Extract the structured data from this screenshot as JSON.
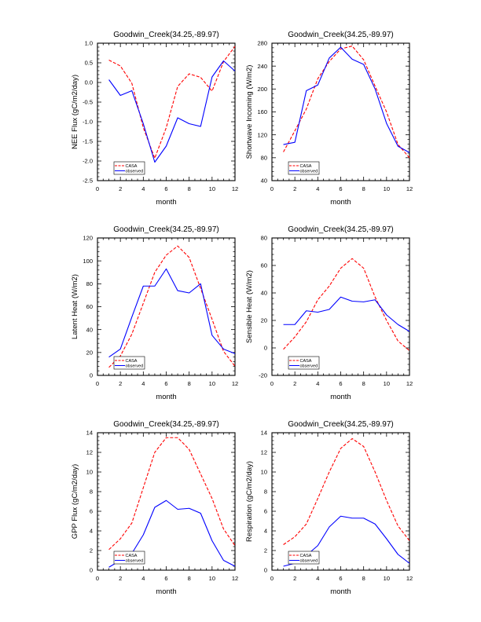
{
  "chart_data": [
    {
      "type": "line",
      "title": "Goodwin_Creek(34.25,-89.97)",
      "xlabel": "month",
      "ylabel": "NEE Flux (gC/m2/day)",
      "xlim": [
        0,
        12
      ],
      "ylim": [
        -2.5,
        1.0
      ],
      "xticks": [
        0,
        2,
        4,
        6,
        8,
        10,
        12
      ],
      "xtick_labels": [
        "0",
        "2",
        "4",
        "6",
        "8",
        "10",
        "12"
      ],
      "yticks": [
        -2.5,
        -2.0,
        -1.5,
        -1.0,
        -0.5,
        0.0,
        0.5,
        1.0
      ],
      "ytick_labels": [
        "-2.5",
        "-2.0",
        "-1.5",
        "-1.0",
        "-0.5",
        "0.0",
        "0.5",
        "1.0"
      ],
      "legend": "bottom-left",
      "grid": false,
      "x": [
        1,
        2,
        3,
        4,
        5,
        6,
        7,
        8,
        9,
        10,
        11,
        12
      ],
      "series": [
        {
          "name": "CASA",
          "color": "#ff0000",
          "style": "dashed",
          "values": [
            0.57,
            0.42,
            -0.02,
            -1.15,
            -1.93,
            -1.15,
            -0.1,
            0.22,
            0.13,
            -0.22,
            0.53,
            0.92
          ]
        },
        {
          "name": "observed",
          "color": "#0000ff",
          "style": "solid",
          "values": [
            0.07,
            -0.33,
            -0.21,
            -1.05,
            -2.03,
            -1.62,
            -0.9,
            -1.05,
            -1.12,
            0.14,
            0.55,
            0.29
          ]
        }
      ]
    },
    {
      "type": "line",
      "title": "Goodwin_Creek(34.25,-89.97)",
      "xlabel": "month",
      "ylabel": "Shortwave Incoming (W/m2)",
      "xlim": [
        0,
        12
      ],
      "ylim": [
        40,
        280
      ],
      "xticks": [
        0,
        2,
        4,
        6,
        8,
        10,
        12
      ],
      "xtick_labels": [
        "0",
        "2",
        "4",
        "6",
        "8",
        "10",
        "12"
      ],
      "yticks": [
        40,
        80,
        120,
        160,
        200,
        240,
        280
      ],
      "ytick_labels": [
        "40",
        "80",
        "120",
        "160",
        "200",
        "240",
        "280"
      ],
      "legend": "bottom-left",
      "grid": false,
      "x": [
        1,
        2,
        3,
        4,
        5,
        6,
        7,
        8,
        9,
        10,
        11,
        12
      ],
      "series": [
        {
          "name": "CASA",
          "color": "#ff0000",
          "style": "dashed",
          "values": [
            90,
            127,
            165,
            218,
            248,
            270,
            275,
            251,
            205,
            160,
            103,
            80
          ]
        },
        {
          "name": "observed",
          "color": "#0000ff",
          "style": "solid",
          "values": [
            103,
            107,
            197,
            207,
            254,
            273,
            252,
            243,
            200,
            140,
            100,
            89
          ]
        }
      ]
    },
    {
      "type": "line",
      "title": "Goodwin_Creek(34.25,-89.97)",
      "xlabel": "month",
      "ylabel": "Latent Heat (W/m2)",
      "xlim": [
        0,
        12
      ],
      "ylim": [
        0,
        120
      ],
      "xticks": [
        0,
        2,
        4,
        6,
        8,
        10,
        12
      ],
      "xtick_labels": [
        "0",
        "2",
        "4",
        "6",
        "8",
        "10",
        "12"
      ],
      "yticks": [
        0,
        20,
        40,
        60,
        80,
        100,
        120
      ],
      "ytick_labels": [
        "0",
        "20",
        "40",
        "60",
        "80",
        "100",
        "120"
      ],
      "legend": "bottom-left",
      "grid": false,
      "x": [
        1,
        2,
        3,
        4,
        5,
        6,
        7,
        8,
        9,
        10,
        11,
        12
      ],
      "series": [
        {
          "name": "CASA",
          "color": "#ff0000",
          "style": "dashed",
          "values": [
            7,
            17,
            36,
            63,
            90,
            105,
            113,
            103,
            76,
            49,
            21,
            8
          ]
        },
        {
          "name": "observed",
          "color": "#0000ff",
          "style": "solid",
          "values": [
            16,
            23,
            51,
            78,
            78,
            93,
            74,
            72,
            80,
            35,
            23,
            19
          ]
        }
      ]
    },
    {
      "type": "line",
      "title": "Goodwin_Creek(34.25,-89.97)",
      "xlabel": "month",
      "ylabel": "Sensible Heat (W/m2)",
      "xlim": [
        0,
        12
      ],
      "ylim": [
        -20,
        80
      ],
      "xticks": [
        0,
        2,
        4,
        6,
        8,
        10,
        12
      ],
      "xtick_labels": [
        "0",
        "2",
        "4",
        "6",
        "8",
        "10",
        "12"
      ],
      "yticks": [
        -20,
        0,
        20,
        40,
        60,
        80
      ],
      "ytick_labels": [
        "-20",
        "0",
        "20",
        "40",
        "60",
        "80"
      ],
      "legend": "bottom-left",
      "grid": false,
      "x": [
        1,
        2,
        3,
        4,
        5,
        6,
        7,
        8,
        9,
        10,
        11,
        12
      ],
      "series": [
        {
          "name": "CASA",
          "color": "#ff0000",
          "style": "dashed",
          "values": [
            -1,
            8,
            19,
            35,
            45,
            58,
            65,
            58,
            37,
            20,
            5,
            -2
          ]
        },
        {
          "name": "observed",
          "color": "#0000ff",
          "style": "solid",
          "values": [
            17,
            17,
            27,
            26,
            28,
            37,
            34,
            33.5,
            35,
            24,
            17,
            12
          ]
        }
      ]
    },
    {
      "type": "line",
      "title": "Goodwin_Creek(34.25,-89.97)",
      "xlabel": "month",
      "ylabel": "GPP Flux (gC/m2/day)",
      "xlim": [
        0,
        12
      ],
      "ylim": [
        0,
        14
      ],
      "xticks": [
        0,
        2,
        4,
        6,
        8,
        10,
        12
      ],
      "xtick_labels": [
        "0",
        "2",
        "4",
        "6",
        "8",
        "10",
        "12"
      ],
      "yticks": [
        0,
        2,
        4,
        6,
        8,
        10,
        12,
        14
      ],
      "ytick_labels": [
        "0",
        "2",
        "4",
        "6",
        "8",
        "10",
        "12",
        "14"
      ],
      "legend": "bottom-left",
      "grid": false,
      "x": [
        1,
        2,
        3,
        4,
        5,
        6,
        7,
        8,
        9,
        10,
        11,
        12
      ],
      "series": [
        {
          "name": "CASA",
          "color": "#ff0000",
          "style": "dashed",
          "values": [
            2.1,
            3.2,
            4.8,
            8.4,
            12.0,
            13.5,
            13.5,
            12.3,
            9.8,
            7.3,
            4.2,
            2.5
          ]
        },
        {
          "name": "observed",
          "color": "#0000ff",
          "style": "solid",
          "values": [
            0.3,
            1.0,
            1.7,
            3.6,
            6.4,
            7.1,
            6.2,
            6.3,
            5.8,
            3.0,
            1.0,
            0.4
          ]
        }
      ]
    },
    {
      "type": "line",
      "title": "Goodwin_Creek(34.25,-89.97)",
      "xlabel": "month",
      "ylabel": "Respiration (gC/m2/day)",
      "xlim": [
        0,
        12
      ],
      "ylim": [
        0,
        14
      ],
      "xticks": [
        0,
        2,
        4,
        6,
        8,
        10,
        12
      ],
      "xtick_labels": [
        "0",
        "2",
        "4",
        "6",
        "8",
        "10",
        "12"
      ],
      "yticks": [
        0,
        2,
        4,
        6,
        8,
        10,
        12,
        14
      ],
      "ytick_labels": [
        "0",
        "2",
        "4",
        "6",
        "8",
        "10",
        "12",
        "14"
      ],
      "legend": "bottom-left",
      "grid": false,
      "x": [
        1,
        2,
        3,
        4,
        5,
        6,
        7,
        8,
        9,
        10,
        11,
        12
      ],
      "series": [
        {
          "name": "CASA",
          "color": "#ff0000",
          "style": "dashed",
          "values": [
            2.6,
            3.4,
            4.7,
            7.3,
            10.0,
            12.4,
            13.4,
            12.6,
            10.0,
            7.1,
            4.5,
            3.0
          ]
        },
        {
          "name": "observed",
          "color": "#0000ff",
          "style": "solid",
          "values": [
            0.4,
            0.7,
            1.5,
            2.5,
            4.4,
            5.5,
            5.3,
            5.3,
            4.7,
            3.2,
            1.6,
            0.7
          ]
        }
      ]
    }
  ]
}
